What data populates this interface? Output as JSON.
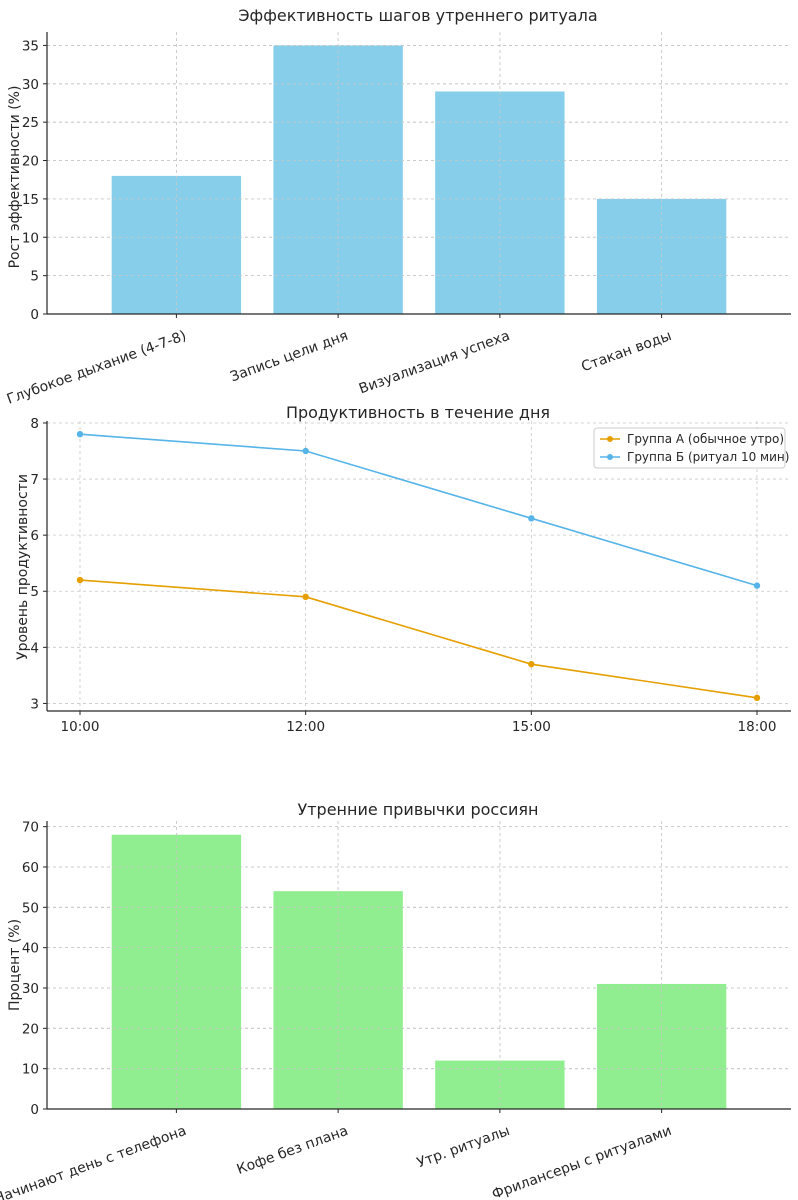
{
  "chart_data": [
    {
      "type": "bar",
      "title": "Эффективность шагов утреннего ритуала",
      "xlabel": "",
      "ylabel": "Рост эффективности (%)",
      "categories": [
        "Глубокое дыхание (4-7-8)",
        "Запись цели дня",
        "Визуализация успеха",
        "Стакан воды"
      ],
      "values": [
        18,
        35,
        29,
        15
      ],
      "ylim": [
        0,
        36.75
      ],
      "yticks": [
        0,
        5,
        10,
        15,
        20,
        25,
        30,
        35
      ],
      "color": "#87ceeb",
      "grid": true
    },
    {
      "type": "line",
      "title": "Продуктивность в течение дня",
      "xlabel": "",
      "ylabel": "Уровень продуктивности",
      "categories": [
        "10:00",
        "12:00",
        "15:00",
        "18:00"
      ],
      "series": [
        {
          "name": "Группа А (обычное утро)",
          "values": [
            5.2,
            4.9,
            3.7,
            3.1
          ],
          "color": "#e69f00"
        },
        {
          "name": "Группа Б (ритуал 10 мин)",
          "values": [
            7.8,
            7.5,
            6.3,
            5.1
          ],
          "color": "#56b4e9"
        }
      ],
      "ylim": [
        2.865,
        8.035
      ],
      "yticks": [
        3,
        4,
        5,
        6,
        7,
        8
      ],
      "legend": "top-right",
      "grid": true
    },
    {
      "type": "bar",
      "title": "Утренние привычки россиян",
      "xlabel": "",
      "ylabel": "Процент (%)",
      "categories": [
        "Начинают день с телефона",
        "Кофе без плана",
        "Утр. ритуалы",
        "Фрилансеры с ритуалами"
      ],
      "values": [
        68,
        54,
        12,
        31
      ],
      "ylim": [
        0,
        71.4
      ],
      "yticks": [
        0,
        10,
        20,
        30,
        40,
        50,
        60,
        70
      ],
      "color": "#90ee90",
      "grid": true
    }
  ]
}
